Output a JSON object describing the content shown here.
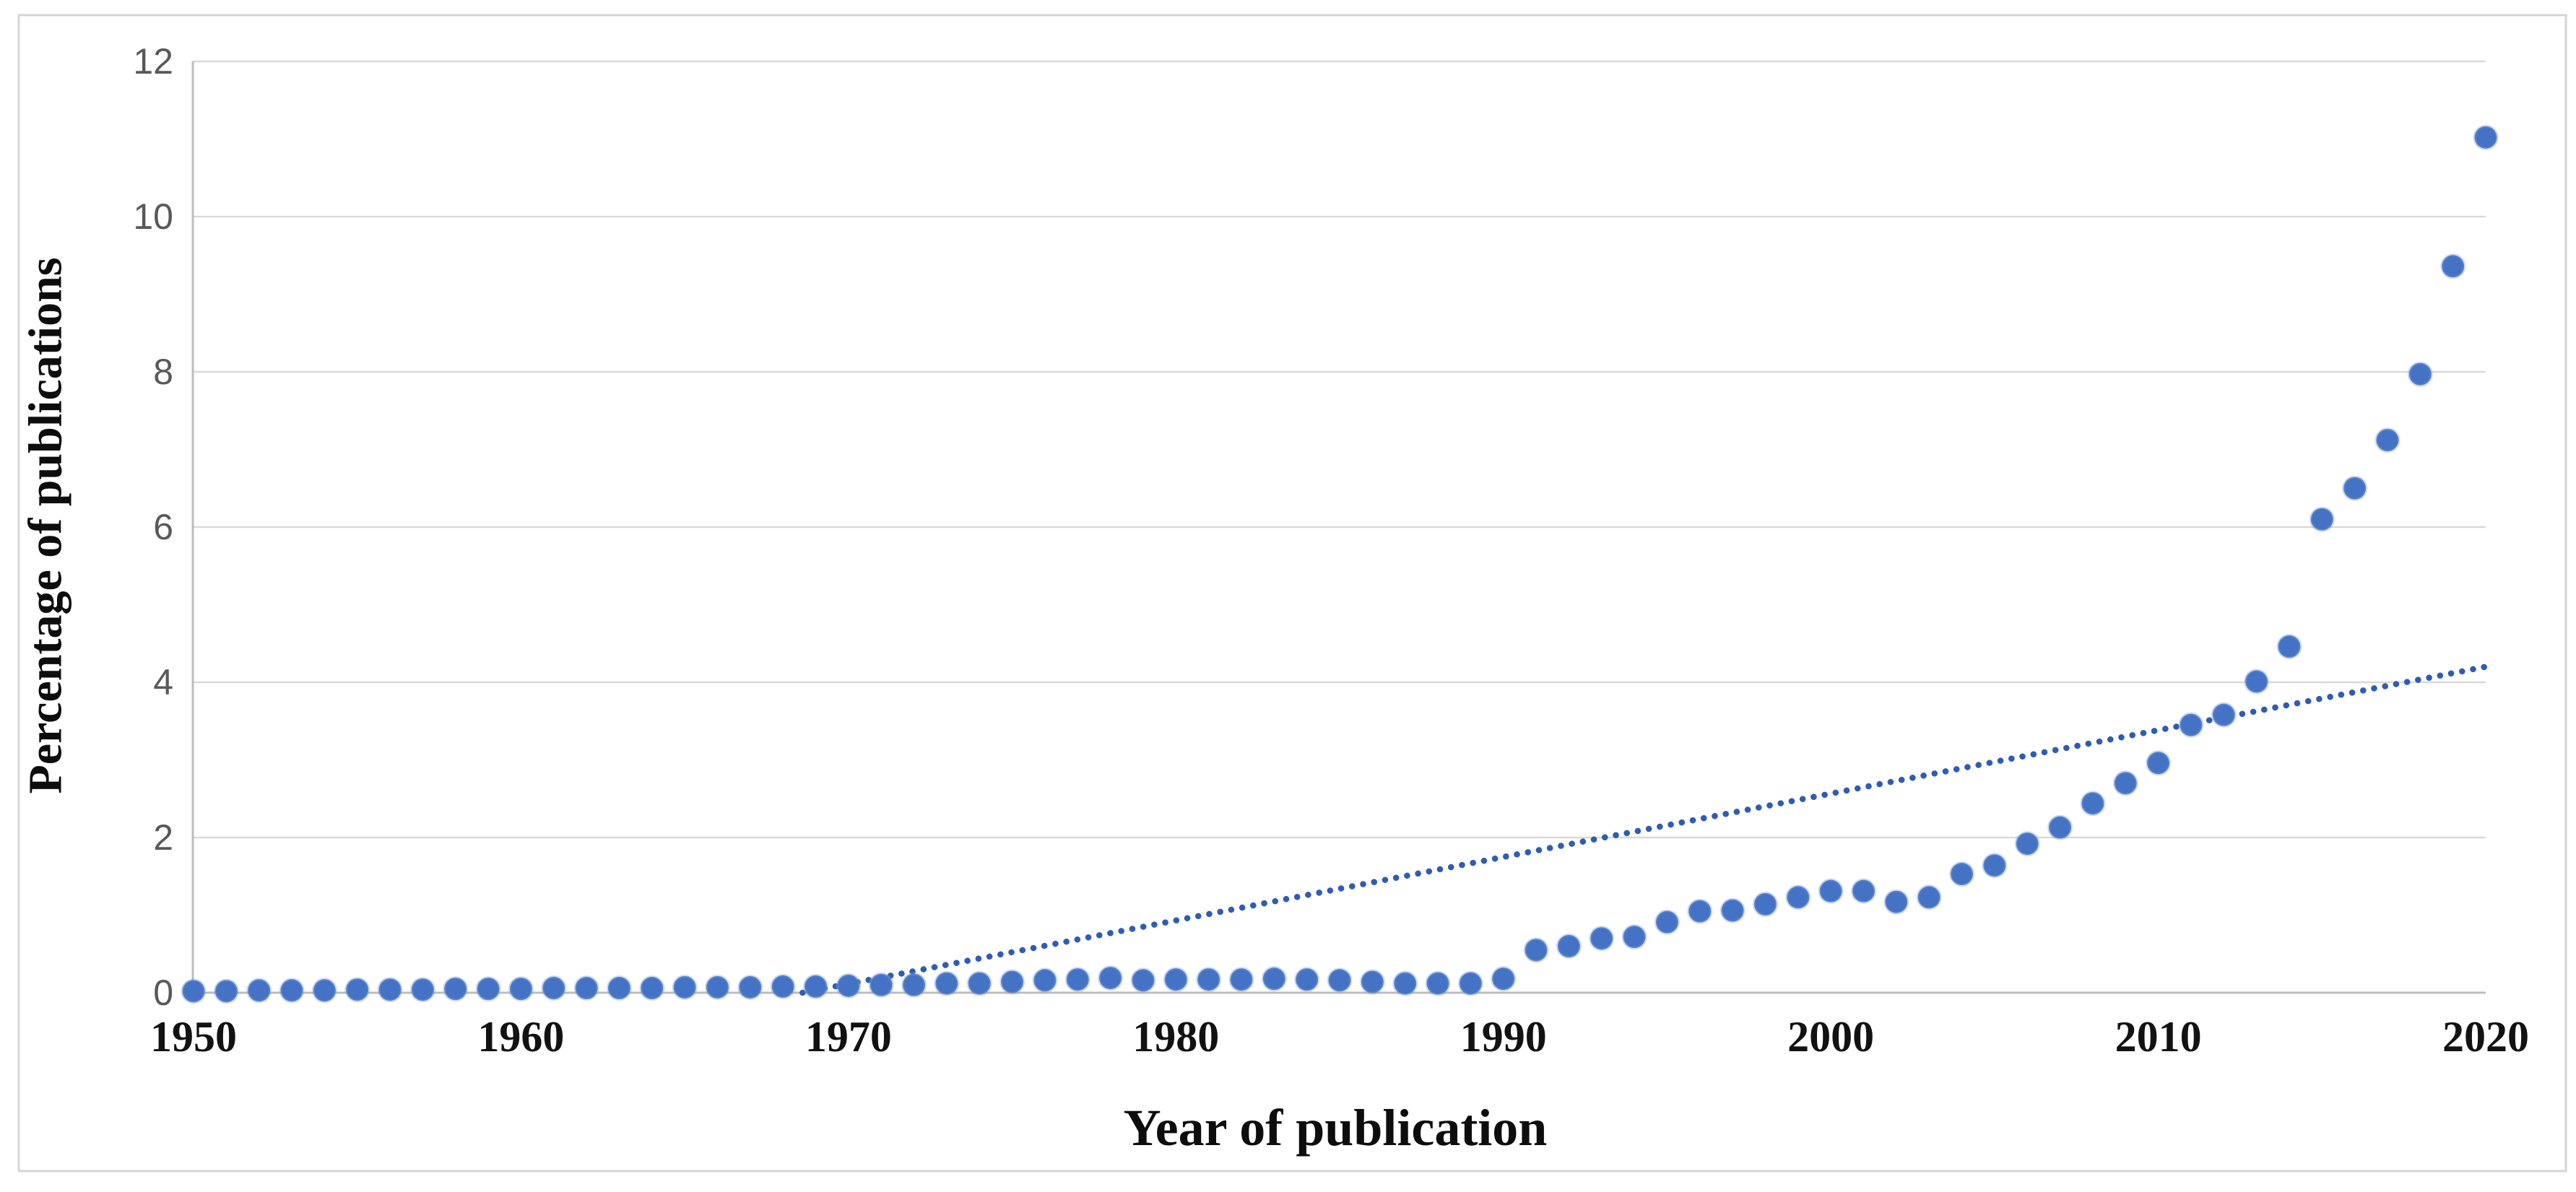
{
  "figure": {
    "background_color": "#ffffff",
    "border_color": "#d5d5d5"
  },
  "chart_data": {
    "type": "scatter",
    "title": "",
    "xlabel": "Year of publication",
    "ylabel": "Percentage of publications",
    "x_ticks": [
      1950,
      1960,
      1970,
      1980,
      1990,
      2000,
      2010,
      2020
    ],
    "y_ticks": [
      0,
      2,
      4,
      6,
      8,
      10,
      12
    ],
    "xlim": [
      1950,
      2020
    ],
    "ylim": [
      0,
      12
    ],
    "grid": true,
    "legend": "none",
    "marker_color": "#4472c4",
    "marker_edge_color": "#7a9bd6",
    "trend_color": "#2f5cb3",
    "grid_color": "#d9d9d9",
    "axis_line_color": "#bdbdbd",
    "x_tick_label_color": "#121212",
    "y_tick_label_color": "#595959",
    "series": [
      {
        "name": "Percentage of publications",
        "x": [
          1950,
          1951,
          1952,
          1953,
          1954,
          1955,
          1956,
          1957,
          1958,
          1959,
          1960,
          1961,
          1962,
          1963,
          1964,
          1965,
          1966,
          1967,
          1968,
          1969,
          1970,
          1971,
          1972,
          1973,
          1974,
          1975,
          1976,
          1977,
          1978,
          1979,
          1980,
          1981,
          1982,
          1983,
          1984,
          1985,
          1986,
          1987,
          1988,
          1989,
          1990,
          1991,
          1992,
          1993,
          1994,
          1995,
          1996,
          1997,
          1998,
          1999,
          2000,
          2001,
          2002,
          2003,
          2004,
          2005,
          2006,
          2007,
          2008,
          2009,
          2010,
          2011,
          2012,
          2013,
          2014,
          2015,
          2016,
          2017,
          2018,
          2019,
          2020
        ],
        "y": [
          0.02,
          0.02,
          0.03,
          0.03,
          0.03,
          0.04,
          0.04,
          0.04,
          0.05,
          0.05,
          0.05,
          0.06,
          0.06,
          0.06,
          0.06,
          0.07,
          0.07,
          0.07,
          0.08,
          0.08,
          0.09,
          0.1,
          0.1,
          0.12,
          0.12,
          0.14,
          0.16,
          0.17,
          0.19,
          0.16,
          0.17,
          0.17,
          0.17,
          0.18,
          0.17,
          0.16,
          0.14,
          0.12,
          0.12,
          0.12,
          0.18,
          0.55,
          0.6,
          0.7,
          0.72,
          0.91,
          1.05,
          1.06,
          1.14,
          1.23,
          1.31,
          1.31,
          1.17,
          1.23,
          1.53,
          1.64,
          1.92,
          2.13,
          2.44,
          2.7,
          2.96,
          3.45,
          3.58,
          4.01,
          4.46,
          6.1,
          6.5,
          7.12,
          7.97,
          9.36,
          11.02
        ]
      }
    ],
    "trendline": {
      "style": "dotted",
      "x1": 1968.6,
      "y1": 0.0,
      "x2": 2020.0,
      "y2": 4.2
    }
  }
}
